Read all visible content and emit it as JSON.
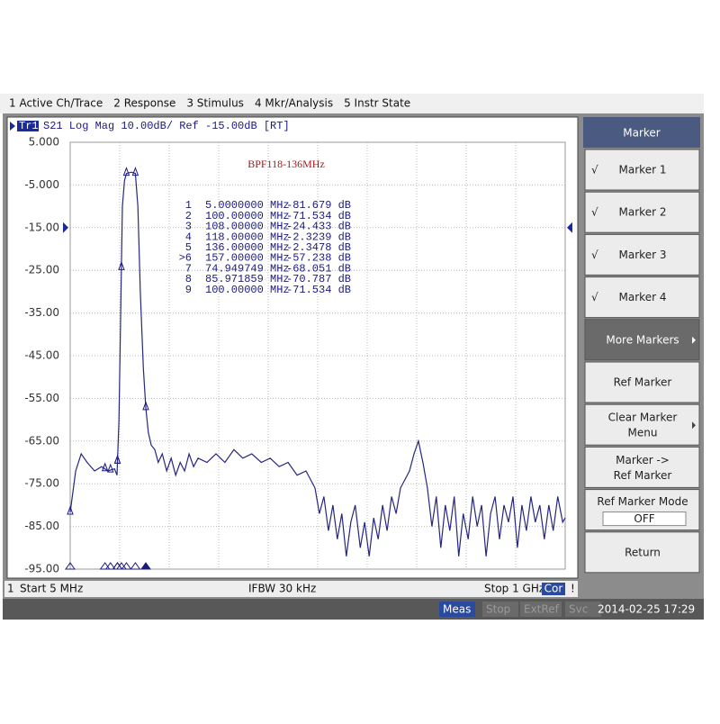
{
  "menu": [
    "1 Active Ch/Trace",
    "2 Response",
    "3 Stimulus",
    "4 Mkr/Analysis",
    "5 Instr State"
  ],
  "trace_header": {
    "tag": "Tr1",
    "text": "S21 Log Mag 10.00dB/ Ref -15.00dB [RT]"
  },
  "chart_data": {
    "type": "line",
    "title": "BPF118-136MHz",
    "xlim": [
      5,
      1000
    ],
    "xticks": [
      5,
      104.5,
      204,
      303.5,
      403,
      502.5,
      602,
      701.5,
      801,
      900.5,
      1000
    ],
    "ylim": [
      -95,
      5
    ],
    "yticks": [
      {
        "value": 5,
        "label": "5.000"
      },
      {
        "value": -5,
        "label": "-5.000"
      },
      {
        "value": -15,
        "label": "-15.00"
      },
      {
        "value": -25,
        "label": "-25.00"
      },
      {
        "value": -35,
        "label": "-35.00"
      },
      {
        "value": -45,
        "label": "-45.00"
      },
      {
        "value": -55,
        "label": "-55.00"
      },
      {
        "value": -65,
        "label": "-65.00"
      },
      {
        "value": -75,
        "label": "-75.00"
      },
      {
        "value": -85,
        "label": "-85.00"
      },
      {
        "value": -95,
        "label": "-95.00"
      }
    ],
    "grid": true,
    "x": [
      5,
      16,
      27,
      39,
      54,
      68,
      81,
      94,
      99,
      103,
      108,
      110,
      114,
      118,
      128,
      136,
      141,
      146,
      152,
      157,
      162,
      168,
      175,
      182,
      190,
      199,
      208,
      217,
      226,
      235,
      244,
      253,
      262,
      280,
      298,
      316,
      334,
      352,
      370,
      389,
      407,
      425,
      443,
      461,
      479,
      497,
      506,
      515,
      524,
      533,
      542,
      551,
      560,
      569,
      578,
      588,
      597,
      606,
      615,
      624,
      633,
      642,
      651,
      660,
      669,
      678,
      687,
      696,
      705,
      714,
      723,
      732,
      741,
      750,
      759,
      768,
      777,
      786,
      795,
      805,
      814,
      823,
      832,
      841,
      850,
      859,
      868,
      877,
      886,
      895,
      904,
      913,
      922,
      931,
      940,
      949,
      958,
      967,
      976,
      985,
      995,
      1000
    ],
    "series": [
      {
        "name": "S21",
        "color": "#262680",
        "values": [
          -81.7,
          -72,
          -68,
          -70,
          -72,
          -71,
          -72,
          -71.5,
          -73,
          -60,
          -24.4,
          -10,
          -4,
          -2.3,
          -2,
          -2.3,
          -10,
          -30,
          -48,
          -57.2,
          -63,
          -66,
          -67,
          -70,
          -68,
          -72,
          -69,
          -73,
          -70,
          -72,
          -68,
          -71,
          -69,
          -70,
          -68,
          -70,
          -67,
          -69,
          -68,
          -70,
          -69,
          -71,
          -70,
          -73,
          -72,
          -76,
          -82,
          -78,
          -86,
          -80,
          -88,
          -82,
          -92,
          -84,
          -80,
          -90,
          -84,
          -92,
          -83,
          -88,
          -80,
          -86,
          -78,
          -82,
          -76,
          -74,
          -72,
          -68,
          -65,
          -70,
          -76,
          -85,
          -78,
          -90,
          -80,
          -86,
          -78,
          -92,
          -82,
          -88,
          -78,
          -85,
          -80,
          -92,
          -82,
          -78,
          -88,
          -80,
          -84,
          -78,
          -90,
          -80,
          -86,
          -78,
          -84,
          -80,
          -88,
          -80,
          -86,
          -78,
          -84,
          -83
        ]
      }
    ]
  },
  "markers": [
    {
      "id": "1",
      "freq": "5.0000000 MHz",
      "value": "-81.679 dB"
    },
    {
      "id": "2",
      "freq": "100.00000 MHz",
      "value": "-71.534 dB"
    },
    {
      "id": "3",
      "freq": "108.00000 MHz",
      "value": "-24.433 dB"
    },
    {
      "id": "4",
      "freq": "118.00000 MHz",
      "value": "-2.3239 dB"
    },
    {
      "id": "5",
      "freq": "136.00000 MHz",
      "value": "-2.3478 dB"
    },
    {
      "id": ">6",
      "freq": "157.00000 MHz",
      "value": "-57.238 dB"
    },
    {
      "id": "7",
      "freq": "74.949749 MHz",
      "value": "-68.051 dB"
    },
    {
      "id": "8",
      "freq": "85.971859 MHz",
      "value": "-70.787 dB"
    },
    {
      "id": "9",
      "freq": "100.00000 MHz",
      "value": "-71.534 dB"
    }
  ],
  "footer": {
    "channel": "1",
    "start": "Start 5 MHz",
    "ifbw": "IFBW 30 kHz",
    "stop": "Stop 1 GHz",
    "cor": "Cor",
    "alert": "!"
  },
  "status": {
    "items": [
      "Meas",
      "Stop",
      "ExtRef",
      "Svc"
    ],
    "datetime": "2014-02-25 17:29"
  },
  "softkey_title": "Marker",
  "softkeys": [
    {
      "check": "√",
      "lines": [
        "Marker 1"
      ]
    },
    {
      "check": "√",
      "lines": [
        "Marker 2"
      ]
    },
    {
      "check": "√",
      "lines": [
        "Marker 3"
      ]
    },
    {
      "check": "√",
      "lines": [
        "Marker 4"
      ]
    },
    {
      "lines": [
        "More Markers"
      ],
      "submenu": true,
      "dark": true
    },
    {
      "lines": [
        "Ref Marker"
      ]
    },
    {
      "lines": [
        "Clear Marker",
        "Menu"
      ],
      "submenu": true
    },
    {
      "lines": [
        "Marker ->",
        "Ref Marker"
      ]
    },
    {
      "lines": [
        "Ref Marker Mode"
      ],
      "value": "OFF"
    },
    {
      "lines": [
        "Return"
      ]
    }
  ]
}
